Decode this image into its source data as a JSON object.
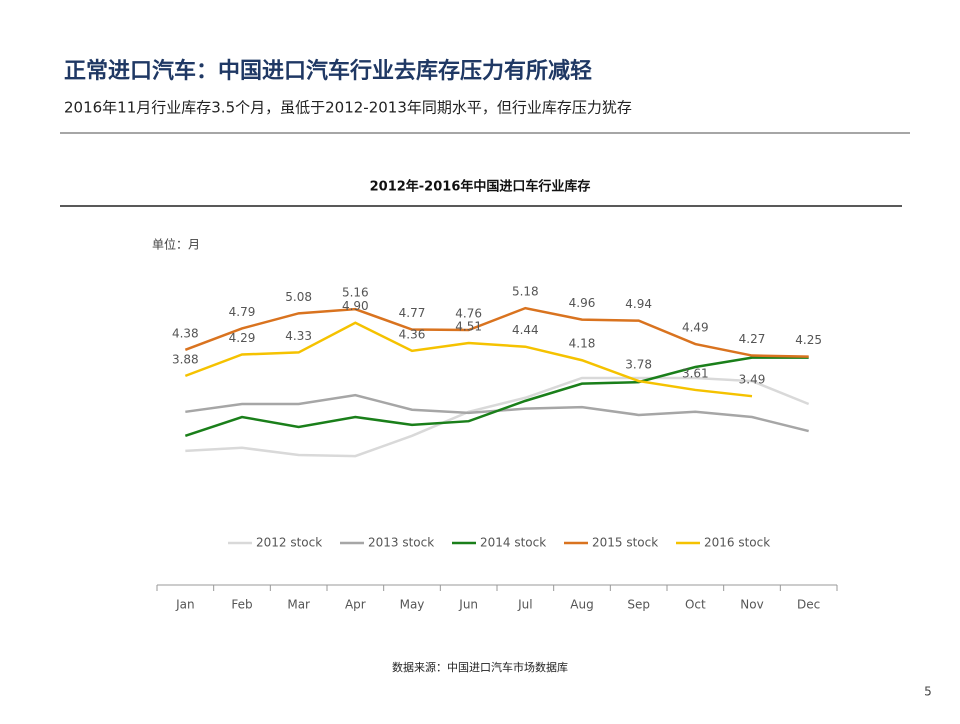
{
  "header": {
    "title": "正常进口汽车：中国进口汽车行业去库存压力有所减轻",
    "subtitle": "2016年11月行业库存3.5个月，虽低于2012-2013年同期水平，但行业库存压力犹存"
  },
  "chart_data": {
    "type": "line",
    "title": "2012年-2016年中国进口车行业库存",
    "unit_label": "单位：月",
    "categories": [
      "Jan",
      "Feb",
      "Mar",
      "Apr",
      "May",
      "Jun",
      "Jul",
      "Aug",
      "Sep",
      "Oct",
      "Nov",
      "Dec"
    ],
    "ylim": [
      0,
      6.2
    ],
    "series": [
      {
        "name": "2012 stock",
        "color": "#d9d9d9",
        "values": [
          2.44,
          2.5,
          2.36,
          2.34,
          2.73,
          3.19,
          3.46,
          3.84,
          3.84,
          3.84,
          3.78,
          3.34
        ]
      },
      {
        "name": "2013 stock",
        "color": "#a6a6a6",
        "values": [
          3.19,
          3.34,
          3.34,
          3.51,
          3.23,
          3.17,
          3.25,
          3.28,
          3.13,
          3.19,
          3.09,
          2.82
        ]
      },
      {
        "name": "2014 stock",
        "color": "#1a7f1a",
        "values": [
          2.73,
          3.09,
          2.9,
          3.09,
          2.94,
          3.01,
          3.4,
          3.73,
          3.76,
          4.05,
          4.23,
          4.23
        ]
      },
      {
        "name": "2015 stock",
        "color": "#d9731f",
        "values": [
          4.38,
          4.79,
          5.08,
          5.16,
          4.77,
          4.76,
          5.18,
          4.96,
          4.94,
          4.49,
          4.27,
          4.25
        ],
        "value_labels": [
          "4.38",
          "4.79",
          "5.08",
          "5.16",
          "4.77",
          "4.76",
          "5.18",
          "4.96",
          "4.94",
          "4.49",
          "4.27",
          "4.25"
        ]
      },
      {
        "name": "2016 stock",
        "color": "#f5c200",
        "values": [
          3.88,
          4.29,
          4.33,
          4.9,
          4.36,
          4.51,
          4.44,
          4.18,
          3.78,
          3.61,
          3.49,
          null
        ],
        "value_labels": [
          "3.88",
          "4.29",
          "4.33",
          "4.90",
          "4.36",
          "4.51",
          "4.44",
          "4.18",
          "3.78",
          "3.61",
          "3.49",
          null
        ]
      }
    ]
  },
  "source": "数据来源：中国进口汽车市场数据库",
  "page_number": 5
}
